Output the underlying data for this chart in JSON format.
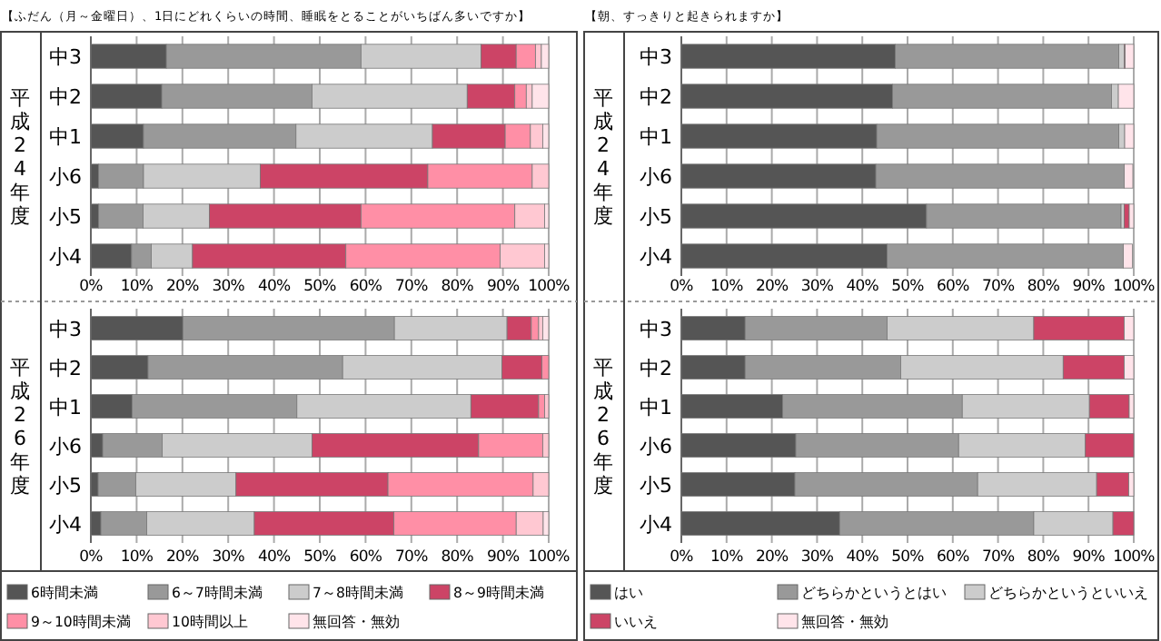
{
  "chart_data": [
    {
      "type": "bar",
      "orientation": "horizontal",
      "stacked": true,
      "title": "【ふだん（月～金曜日）、1日にどれくらいの時間、睡眠をとることがいちばん多いですか】",
      "ylabel": "平成24年度",
      "categories": [
        "中3",
        "中2",
        "中1",
        "小6",
        "小5",
        "小4"
      ],
      "xlim": [
        0,
        100
      ],
      "xticks": [
        {
          "value": 0,
          "label": "0%"
        },
        {
          "value": 10,
          "label": "10%"
        },
        {
          "value": 20,
          "label": "20%"
        },
        {
          "value": 30,
          "label": "30%"
        },
        {
          "value": 40,
          "label": "40%"
        },
        {
          "value": 50,
          "label": "50%"
        },
        {
          "value": 60,
          "label": "60%"
        },
        {
          "value": 70,
          "label": "70%"
        },
        {
          "value": 80,
          "label": "80%"
        },
        {
          "value": 90,
          "label": "90%"
        },
        {
          "value": 100,
          "label": "100%"
        }
      ],
      "grid": "x",
      "series": [
        {
          "color": "#555555",
          "values": [
            16.5,
            15.5,
            11.5,
            1.7,
            1.7,
            8.9
          ]
        },
        {
          "color": "#999999",
          "values": [
            42.5,
            32.8,
            33.3,
            9.8,
            9.7,
            4.3
          ]
        },
        {
          "color": "#cccccc",
          "values": [
            26.2,
            33.9,
            29.8,
            25.5,
            14.5,
            9.0
          ]
        },
        {
          "color": "#cc4466",
          "values": [
            7.7,
            10.4,
            15.9,
            36.6,
            33.1,
            33.5
          ]
        },
        {
          "color": "#ff8fa6",
          "values": [
            4.2,
            2.5,
            5.5,
            22.8,
            33.6,
            33.7
          ]
        },
        {
          "color": "#ffc8d2",
          "values": [
            1.3,
            1.3,
            2.7,
            3.6,
            6.5,
            9.7
          ]
        },
        {
          "color": "#ffe4ea",
          "values": [
            1.6,
            3.6,
            1.3,
            0,
            0.9,
            0.9
          ]
        }
      ]
    },
    {
      "type": "bar",
      "orientation": "horizontal",
      "stacked": true,
      "title": "【朝、すっきりと起きられますか】",
      "ylabel": "平成24年度",
      "categories": [
        "中3",
        "中2",
        "中1",
        "小6",
        "小5",
        "小4"
      ],
      "xlim": [
        0,
        100
      ],
      "xticks": [
        {
          "value": 0,
          "label": "0%"
        },
        {
          "value": 10,
          "label": "10%"
        },
        {
          "value": 20,
          "label": "20%"
        },
        {
          "value": 30,
          "label": "30%"
        },
        {
          "value": 40,
          "label": "40%"
        },
        {
          "value": 50,
          "label": "50%"
        },
        {
          "value": 60,
          "label": "60%"
        },
        {
          "value": 70,
          "label": "70%"
        },
        {
          "value": 80,
          "label": "80%"
        },
        {
          "value": 90,
          "label": "90%"
        },
        {
          "value": 100,
          "label": "100%"
        }
      ],
      "grid": "x",
      "series": [
        {
          "color": "#555555",
          "values": [
            47.3,
            46.7,
            43.2,
            43.0,
            54.2,
            45.5
          ]
        },
        {
          "color": "#999999",
          "values": [
            49.4,
            48.4,
            53.5,
            54.9,
            43.0,
            52.2
          ]
        },
        {
          "color": "#cccccc",
          "values": [
            1.2,
            1.5,
            1.3,
            null,
            0.7,
            null
          ]
        },
        {
          "color": "#cc4466",
          "values": [
            0.2,
            0,
            0,
            0,
            1.1,
            0
          ]
        },
        {
          "color": "#ffe4ea",
          "values": [
            1.9,
            3.4,
            2.0,
            1.9,
            1.0,
            2.0
          ]
        }
      ]
    },
    {
      "type": "bar",
      "orientation": "horizontal",
      "stacked": true,
      "ylabel": "平成26年度",
      "categories": [
        "中3",
        "中2",
        "中1",
        "小6",
        "小5",
        "小4"
      ],
      "xlim": [
        0,
        100
      ],
      "xticks": [
        {
          "value": 0,
          "label": "0%"
        },
        {
          "value": 10,
          "label": "10%"
        },
        {
          "value": 20,
          "label": "20%"
        },
        {
          "value": 30,
          "label": "30%"
        },
        {
          "value": 40,
          "label": "40%"
        },
        {
          "value": 50,
          "label": "50%"
        },
        {
          "value": 60,
          "label": "60%"
        },
        {
          "value": 70,
          "label": "70%"
        },
        {
          "value": 80,
          "label": "80%"
        },
        {
          "value": 90,
          "label": "90%"
        },
        {
          "value": 100,
          "label": "100%"
        }
      ],
      "grid": "x",
      "legend": "bottom",
      "series": [
        {
          "name": "6時間未満",
          "color": "#555555",
          "values": [
            20.1,
            12.5,
            9.0,
            2.6,
            1.6,
            2.2
          ]
        },
        {
          "name": "6～7時間未満",
          "color": "#999999",
          "values": [
            46.2,
            42.5,
            36.0,
            13.0,
            8.2,
            10.0
          ]
        },
        {
          "name": "7～8時間未満",
          "color": "#cccccc",
          "values": [
            24.6,
            34.8,
            38.0,
            32.7,
            21.9,
            23.5
          ]
        },
        {
          "name": "8～9時間未満",
          "color": "#cc4466",
          "values": [
            5.3,
            8.7,
            14.8,
            36.4,
            33.2,
            30.5
          ]
        },
        {
          "name": "9～10時間未満",
          "color": "#ff8fa6",
          "values": [
            1.6,
            1.5,
            1.3,
            14.0,
            31.7,
            26.7
          ]
        },
        {
          "name": "10時間以上",
          "color": "#ffc8d2",
          "values": [
            0.9,
            0,
            0.9,
            1.3,
            3.4,
            5.9
          ]
        },
        {
          "name": "無回答・無効",
          "color": "#ffe4ea",
          "values": [
            1.3,
            0,
            0,
            0,
            0,
            1.2
          ]
        }
      ]
    },
    {
      "type": "bar",
      "orientation": "horizontal",
      "stacked": true,
      "ylabel": "平成26年度",
      "categories": [
        "中3",
        "中2",
        "中1",
        "小6",
        "小5",
        "小4"
      ],
      "xlim": [
        0,
        100
      ],
      "xticks": [
        {
          "value": 0,
          "label": "0%"
        },
        {
          "value": 10,
          "label": "10%"
        },
        {
          "value": 20,
          "label": "20%"
        },
        {
          "value": 30,
          "label": "30%"
        },
        {
          "value": 40,
          "label": "40%"
        },
        {
          "value": 50,
          "label": "50%"
        },
        {
          "value": 60,
          "label": "60%"
        },
        {
          "value": 70,
          "label": "70%"
        },
        {
          "value": 80,
          "label": "80%"
        },
        {
          "value": 90,
          "label": "90%"
        },
        {
          "value": 100,
          "label": "100%"
        }
      ],
      "grid": "x",
      "legend": "bottom",
      "series": [
        {
          "name": "はい",
          "color": "#555555",
          "values": [
            14.1,
            14.1,
            22.4,
            25.3,
            25.1,
            35.0
          ]
        },
        {
          "name": "どちらかというとはい",
          "color": "#999999",
          "values": [
            31.4,
            34.4,
            39.7,
            36.0,
            40.4,
            42.9
          ]
        },
        {
          "name": "どちらかというといいえ",
          "color": "#cccccc",
          "values": [
            32.4,
            35.9,
            28.1,
            28.0,
            26.3,
            17.5
          ]
        },
        {
          "name": "いいえ",
          "color": "#cc4466",
          "values": [
            20.0,
            13.5,
            8.8,
            10.7,
            7.1,
            4.6
          ]
        },
        {
          "name": "無回答・無効",
          "color": "#ffe4ea",
          "values": [
            2.1,
            2.1,
            1.0,
            0,
            1.1,
            0
          ]
        }
      ]
    }
  ]
}
